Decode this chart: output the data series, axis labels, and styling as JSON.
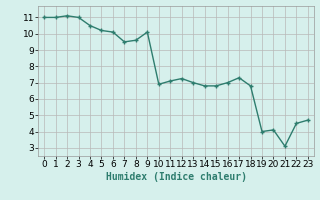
{
  "x": [
    0,
    1,
    2,
    3,
    4,
    5,
    6,
    7,
    8,
    9,
    10,
    11,
    12,
    13,
    14,
    15,
    16,
    17,
    18,
    19,
    20,
    21,
    22,
    23
  ],
  "y": [
    11.0,
    11.0,
    11.1,
    11.0,
    10.5,
    10.2,
    10.1,
    9.5,
    9.6,
    10.1,
    6.9,
    7.1,
    7.25,
    7.0,
    6.8,
    6.8,
    7.0,
    7.3,
    6.8,
    4.0,
    4.1,
    3.1,
    4.5,
    4.7
  ],
  "line_color": "#2e7d6e",
  "marker": "+",
  "marker_size": 3,
  "bg_color": "#d6f0ec",
  "grid_color": "#b8b8b8",
  "xlabel": "Humidex (Indice chaleur)",
  "xlabel_fontsize": 7,
  "xlim": [
    -0.5,
    23.5
  ],
  "ylim": [
    2.5,
    11.7
  ],
  "yticks": [
    3,
    4,
    5,
    6,
    7,
    8,
    9,
    10,
    11
  ],
  "xticks": [
    0,
    1,
    2,
    3,
    4,
    5,
    6,
    7,
    8,
    9,
    10,
    11,
    12,
    13,
    14,
    15,
    16,
    17,
    18,
    19,
    20,
    21,
    22,
    23
  ],
  "tick_fontsize": 6.5,
  "linewidth": 1.0
}
